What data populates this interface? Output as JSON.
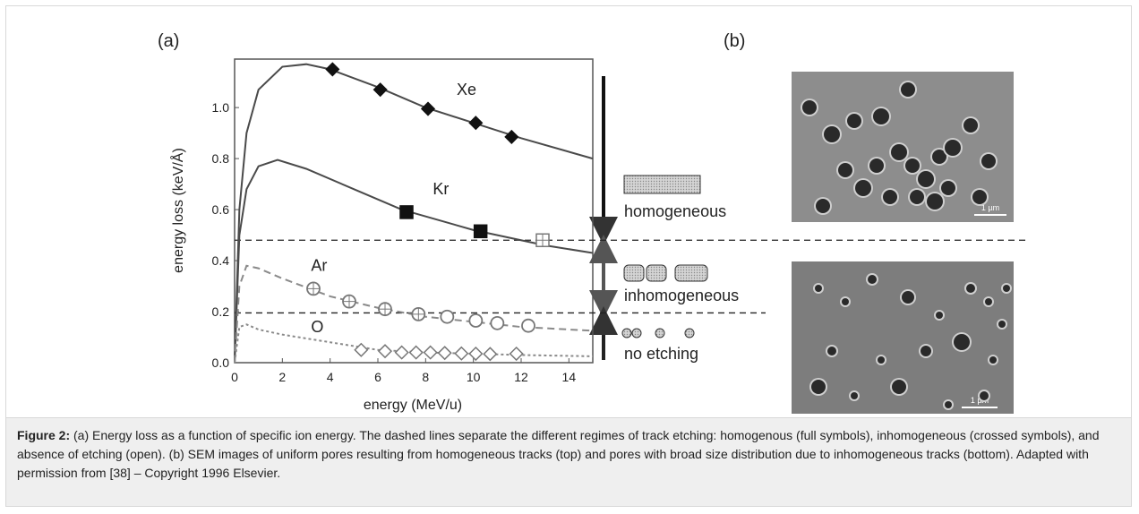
{
  "panel_labels": [
    "(a)",
    "(b)"
  ],
  "chart_data": {
    "type": "line",
    "xlabel": "energy (MeV/u)",
    "ylabel": "energy loss (keV/Å)",
    "xlim": [
      0,
      15
    ],
    "ylim": [
      0,
      1.19
    ],
    "xticks": [
      0,
      2,
      4,
      6,
      8,
      10,
      12,
      14
    ],
    "yticks": [
      {
        "value": 0,
        "label": "0.0"
      },
      0.2,
      0.4,
      0.6,
      0.8,
      {
        "value": 1,
        "label": "1.0"
      }
    ],
    "series": [
      {
        "color": "#4a4a4a",
        "dash": "solid",
        "x": [
          0,
          0.2,
          0.5,
          1,
          2,
          3,
          4,
          6,
          8,
          10,
          12,
          15
        ],
        "values": [
          0,
          0.6,
          0.9,
          1.07,
          1.16,
          1.17,
          1.15,
          1.08,
          1.0,
          0.94,
          0.88,
          0.8
        ]
      },
      {
        "color": "#4a4a4a",
        "dash": "solid",
        "x": [
          0,
          0.2,
          0.5,
          1,
          1.8,
          3,
          5,
          7,
          10,
          13,
          15
        ],
        "values": [
          0,
          0.5,
          0.68,
          0.77,
          0.795,
          0.76,
          0.68,
          0.6,
          0.52,
          0.46,
          0.43
        ]
      },
      {
        "color": "#8a8a8a",
        "dash": "dashed",
        "x": [
          0,
          0.2,
          0.5,
          1,
          2,
          4,
          6,
          8,
          10,
          12,
          15
        ],
        "values": [
          0,
          0.3,
          0.38,
          0.37,
          0.33,
          0.26,
          0.215,
          0.18,
          0.16,
          0.14,
          0.125
        ]
      },
      {
        "color": "#8a8a8a",
        "dash": "dotted",
        "x": [
          0,
          0.2,
          0.5,
          1,
          2,
          4,
          6,
          8,
          10,
          12,
          15
        ],
        "values": [
          0,
          0.14,
          0.15,
          0.13,
          0.11,
          0.08,
          0.05,
          0.04,
          0.035,
          0.03,
          0.025
        ]
      }
    ],
    "markers": [
      {
        "marker": "diamond",
        "fill": "full",
        "x": [
          4.1,
          6.1,
          8.1,
          10.1,
          11.6
        ],
        "values": [
          1.15,
          1.07,
          0.995,
          0.94,
          0.885
        ]
      },
      {
        "marker": "square",
        "fill": "full",
        "x": [
          7.2,
          10.3
        ],
        "values": [
          0.59,
          0.515
        ]
      },
      {
        "marker": "square",
        "fill": "crossed",
        "x": [
          12.9
        ],
        "values": [
          0.48
        ]
      },
      {
        "marker": "circle",
        "fill": "crossed",
        "x": [
          3.3,
          4.8,
          6.3,
          7.7
        ],
        "values": [
          0.29,
          0.24,
          0.21,
          0.19
        ]
      },
      {
        "marker": "circle",
        "fill": "open",
        "x": [
          8.9,
          10.1,
          11.0,
          12.3
        ],
        "values": [
          0.18,
          0.165,
          0.155,
          0.145
        ]
      },
      {
        "marker": "diamond",
        "fill": "open",
        "x": [
          5.3,
          6.3,
          7.0,
          7.6,
          8.2,
          8.8,
          9.5,
          10.1,
          10.7,
          11.8
        ],
        "values": [
          0.05,
          0.045,
          0.04,
          0.04,
          0.04,
          0.038,
          0.036,
          0.035,
          0.034,
          0.035
        ]
      }
    ],
    "annotations": [
      {
        "text": "Xe",
        "x": 9.3,
        "y": 1.05
      },
      {
        "text": "Kr",
        "x": 8.3,
        "y": 0.66
      },
      {
        "text": "Ar",
        "x": 3.2,
        "y": 0.36
      },
      {
        "text": "O",
        "x": 3.2,
        "y": 0.12
      }
    ],
    "hlines": [
      0.48,
      0.195
    ],
    "regimes": [
      "homogeneous",
      "inhomogeneous",
      "no etching"
    ]
  },
  "scale_bars": [
    "1 µm",
    "1 µm"
  ],
  "caption": {
    "label": "Figure 2:",
    "text": "(a) Energy loss as a function of specific ion energy. The dashed lines separate the different regimes of track etching: homogenous (full symbols), inhomogeneous (crossed symbols), and absence of etching (open). (b) SEM images of uniform pores resulting from homogeneous tracks (top) and pores with broad size distribution due to inhomogeneous tracks (bottom). Adapted with permission from [38] – Copyright 1996 Elsevier."
  }
}
